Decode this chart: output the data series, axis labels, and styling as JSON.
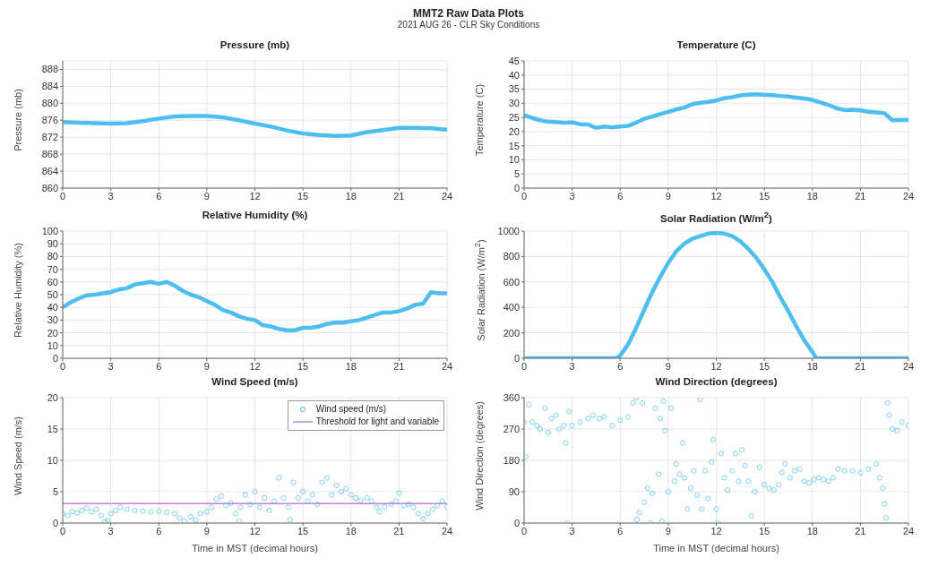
{
  "chart_data": [
    {
      "type": "other",
      "title": "MMT2 Raw Data Plots",
      "subtitle": "2021 AUG 26 - CLR Sky Conditions"
    },
    {
      "type": "line",
      "title": "Pressure (mb)",
      "ylabel": "Pressure (mb)",
      "grid": true,
      "marker": "none",
      "xlim": [
        0,
        24
      ],
      "xticks": [
        0,
        3,
        6,
        9,
        12,
        15,
        18,
        21,
        24
      ],
      "ylim": [
        860,
        890
      ],
      "yticks": [
        860,
        864,
        868,
        872,
        876,
        880,
        884,
        888
      ],
      "x": [
        0,
        1,
        2,
        3,
        4,
        5,
        6,
        7,
        8,
        9,
        10,
        11,
        12,
        13,
        14,
        15,
        16,
        17,
        18,
        19,
        20,
        21,
        22,
        23,
        24
      ],
      "series": [
        {
          "color": "#4dbeee",
          "values": [
            875.6,
            875.4,
            875.3,
            875.2,
            875.3,
            875.8,
            876.4,
            876.9,
            877,
            877,
            876.7,
            876,
            875.2,
            874.5,
            873.6,
            872.9,
            872.5,
            872.3,
            872.4,
            873.2,
            873.7,
            874.2,
            874.2,
            874.1,
            873.8
          ]
        }
      ]
    },
    {
      "type": "line",
      "title": "Temperature (C)",
      "ylabel": "Temperature (C)",
      "grid": true,
      "marker": "none",
      "xlim": [
        0,
        24
      ],
      "xticks": [
        0,
        3,
        6,
        9,
        12,
        15,
        18,
        21,
        24
      ],
      "ylim": [
        0,
        45
      ],
      "yticks": [
        0,
        5,
        10,
        15,
        20,
        25,
        30,
        35,
        40,
        45
      ],
      "x": [
        0,
        0.5,
        1,
        1.5,
        2,
        2.5,
        3,
        3.5,
        4,
        4.5,
        5,
        5.5,
        6,
        6.5,
        7,
        7.5,
        8,
        8.5,
        9,
        9.5,
        10,
        10.5,
        11,
        11.5,
        12,
        12.5,
        13,
        13.5,
        14,
        14.5,
        15,
        15.5,
        16,
        16.5,
        17,
        17.5,
        18,
        18.5,
        19,
        19.5,
        20,
        20.5,
        21,
        21.5,
        22,
        22.5,
        23,
        23.5,
        24
      ],
      "series": [
        {
          "color": "#4dbeee",
          "values": [
            25.8,
            24.8,
            24,
            23.5,
            23.4,
            23.1,
            23.3,
            22.6,
            22.5,
            21.3,
            21.8,
            21.5,
            21.8,
            22,
            23.2,
            24.5,
            25.3,
            26.2,
            27,
            27.8,
            28.5,
            29.7,
            30.2,
            30.5,
            31,
            31.8,
            32.2,
            32.8,
            33,
            33.2,
            33,
            32.9,
            32.6,
            32.4,
            32,
            31.7,
            31.2,
            30.3,
            29.4,
            28.3,
            27.6,
            27.7,
            27.5,
            27,
            26.8,
            26.5,
            24,
            24.1,
            24.1
          ]
        }
      ]
    },
    {
      "type": "line",
      "title": "Relative Humidity (%)",
      "ylabel": "Relative Humidity (%)",
      "grid": true,
      "marker": "none",
      "xlim": [
        0,
        24
      ],
      "xticks": [
        0,
        3,
        6,
        9,
        12,
        15,
        18,
        21,
        24
      ],
      "ylim": [
        0,
        100
      ],
      "yticks": [
        0,
        10,
        20,
        30,
        40,
        50,
        60,
        70,
        80,
        90,
        100
      ],
      "x": [
        0,
        0.5,
        1,
        1.5,
        2,
        2.5,
        3,
        3.5,
        4,
        4.5,
        5,
        5.5,
        6,
        6.5,
        7,
        7.5,
        8,
        8.5,
        9,
        9.5,
        10,
        10.5,
        11,
        11.5,
        12,
        12.5,
        13,
        13.5,
        14,
        14.5,
        15,
        15.5,
        16,
        16.5,
        17,
        17.5,
        18,
        18.5,
        19,
        19.5,
        20,
        20.5,
        21,
        21.5,
        22,
        22.5,
        23,
        23.5,
        24
      ],
      "series": [
        {
          "color": "#4dbeee",
          "values": [
            40,
            44,
            47,
            49.5,
            50,
            51,
            52,
            54,
            55,
            58,
            59,
            60,
            58.5,
            60,
            57,
            53,
            50,
            48,
            45,
            42,
            38,
            36,
            33,
            31,
            30,
            26,
            25,
            23,
            22,
            22,
            24,
            24,
            25,
            27,
            28,
            28,
            29,
            30,
            32,
            34,
            36,
            36,
            37,
            39,
            42,
            43,
            52,
            51,
            51
          ]
        }
      ]
    },
    {
      "type": "line",
      "title": "Solar Radiation (W/m$^{2}$)",
      "ylabel": "Solar Radiation (W/m$^{2}$)",
      "grid": true,
      "marker": "none",
      "xlim": [
        0,
        24
      ],
      "xticks": [
        0,
        3,
        6,
        9,
        12,
        15,
        18,
        21,
        24
      ],
      "ylim": [
        0,
        1000
      ],
      "yticks": [
        0,
        200,
        400,
        600,
        800,
        1000
      ],
      "x": [
        0,
        1,
        2,
        3,
        4,
        5,
        5.75,
        6,
        6.5,
        7,
        7.5,
        8,
        8.5,
        9,
        9.5,
        10,
        10.5,
        11,
        11.5,
        12,
        12.5,
        13,
        13.5,
        14,
        14.5,
        15,
        15.5,
        16,
        16.5,
        17,
        17.5,
        18,
        18.25,
        19,
        20,
        21,
        22,
        23,
        24
      ],
      "series": [
        {
          "color": "#4dbeee",
          "values": [
            0,
            0,
            0,
            0,
            0,
            0,
            0,
            20,
            110,
            240,
            380,
            520,
            640,
            750,
            840,
            900,
            940,
            960,
            980,
            985,
            980,
            960,
            920,
            860,
            790,
            700,
            600,
            480,
            370,
            250,
            140,
            50,
            0,
            0,
            0,
            0,
            0,
            0,
            0
          ]
        }
      ]
    },
    {
      "type": "scatter",
      "title": "Wind Speed (m/s)",
      "xlabel": "Time in MST (decimal hours)",
      "ylabel": "Wind Speed (m/s)",
      "grid": true,
      "marker": "circle",
      "legend": "top right",
      "xlim": [
        0,
        24
      ],
      "xticks": [
        0,
        3,
        6,
        9,
        12,
        15,
        18,
        21,
        24
      ],
      "ylim": [
        0,
        20
      ],
      "yticks": [
        0,
        5,
        10,
        15,
        20
      ],
      "x": [
        0,
        0.3,
        0.6,
        0.9,
        1.2,
        1.5,
        1.8,
        2.1,
        2.4,
        2.6,
        2.8,
        3,
        3.3,
        3.6,
        4,
        4.5,
        5,
        5.5,
        6,
        6.5,
        7,
        7.3,
        7.6,
        8,
        8.3,
        8.6,
        9,
        9.3,
        9.6,
        9.9,
        10.2,
        10.5,
        10.8,
        11,
        11.1,
        11.4,
        11.7,
        12,
        12.3,
        12.6,
        12.9,
        13.2,
        13.5,
        13.8,
        14.1,
        14.2,
        14.4,
        14.7,
        15,
        15.3,
        15.6,
        15.9,
        16.2,
        16.5,
        16.8,
        17.1,
        17.4,
        17.7,
        18,
        18.3,
        18.6,
        19,
        19.3,
        19.6,
        19.8,
        20.1,
        20.5,
        20.8,
        21,
        21.3,
        21.6,
        21.9,
        22.2,
        22.5,
        22.8,
        23.1,
        23.4,
        23.7,
        24
      ],
      "series": [
        {
          "name": "Wind speed (m/s)",
          "color": "#4dbeee",
          "values": [
            1.5,
            1.2,
            1.8,
            1.6,
            2,
            2.4,
            1.8,
            2.2,
            1.2,
            0.2,
            0.4,
            1.5,
            2,
            2.5,
            2.2,
            2,
            1.9,
            1.8,
            1.9,
            1.7,
            1.5,
            0.8,
            0.3,
            1,
            0.5,
            1.5,
            1.8,
            2.5,
            3.8,
            4.3,
            2.8,
            3.2,
            1.5,
            0.3,
            2.5,
            4.5,
            3,
            5,
            2.5,
            4,
            2,
            3.5,
            7.2,
            4,
            2.5,
            0.5,
            6.5,
            4,
            5,
            3.5,
            4.5,
            3,
            6.5,
            7.2,
            4.5,
            6,
            5,
            5.5,
            4.5,
            4,
            3.6,
            4,
            3.5,
            2.5,
            1.8,
            2.6,
            3,
            3.5,
            4.8,
            2.8,
            3,
            2.5,
            1.5,
            0.7,
            1.5,
            2.2,
            2.8,
            3.5,
            2.6
          ]
        }
      ],
      "ref_lines": [
        {
          "axis": "y",
          "value": 3.1,
          "label": "Threshold for light and variable",
          "color": "#c77fd8"
        }
      ]
    },
    {
      "type": "scatter",
      "title": "Wind Direction (degrees)",
      "xlabel": "Time in MST (decimal hours)",
      "ylabel": "Wind Direction (degrees)",
      "grid": true,
      "marker": "circle",
      "xlim": [
        0,
        24
      ],
      "xticks": [
        0,
        3,
        6,
        9,
        12,
        15,
        18,
        21,
        24
      ],
      "ylim": [
        0,
        360
      ],
      "yticks": [
        0,
        90,
        180,
        270,
        360
      ],
      "x": [
        0,
        0.1,
        0.3,
        0.5,
        0.8,
        1,
        1.3,
        1.5,
        1.7,
        2,
        2.2,
        2.5,
        2.6,
        2.7,
        2.8,
        3,
        3.5,
        4,
        4.3,
        4.7,
        5,
        5.5,
        6,
        6.5,
        6.8,
        7,
        7.05,
        7.2,
        7.4,
        7.5,
        7.7,
        7.9,
        8,
        8.2,
        8.4,
        8.5,
        8.6,
        8.7,
        8.8,
        9,
        9.2,
        9.4,
        9.5,
        9.7,
        9.9,
        10,
        10.2,
        10.4,
        10.6,
        10.8,
        11,
        11.1,
        11.3,
        11.5,
        11.7,
        11.8,
        12,
        12.1,
        12.3,
        12.5,
        12.7,
        13,
        13.2,
        13.4,
        13.6,
        13.8,
        14,
        14.2,
        14.4,
        14.7,
        15,
        15.3,
        15.6,
        15.9,
        16.1,
        16.3,
        16.6,
        16.9,
        17.2,
        17.5,
        17.8,
        18.1,
        18.4,
        18.7,
        19,
        19.3,
        19.6,
        20,
        20.5,
        21,
        21.5,
        22,
        22.2,
        22.4,
        22.5,
        22.6,
        22.7,
        22.8,
        23,
        23.3,
        23.6,
        24
      ],
      "series": [
        {
          "color": "#4dbeee",
          "values": [
            290,
            190,
            340,
            290,
            280,
            270,
            330,
            260,
            300,
            310,
            270,
            280,
            230,
            0,
            320,
            280,
            290,
            300,
            310,
            300,
            305,
            280,
            295,
            305,
            345,
            360,
            10,
            30,
            345,
            60,
            100,
            0,
            85,
            330,
            140,
            300,
            5,
            350,
            265,
            90,
            330,
            120,
            170,
            140,
            230,
            130,
            40,
            100,
            150,
            80,
            355,
            40,
            150,
            70,
            175,
            240,
            40,
            0,
            200,
            130,
            95,
            150,
            200,
            120,
            210,
            165,
            120,
            20,
            90,
            160,
            110,
            100,
            95,
            110,
            145,
            170,
            130,
            150,
            155,
            120,
            115,
            125,
            130,
            125,
            120,
            130,
            155,
            150,
            150,
            145,
            155,
            170,
            130,
            100,
            55,
            15,
            345,
            310,
            270,
            265,
            290,
            280
          ]
        }
      ]
    }
  ]
}
